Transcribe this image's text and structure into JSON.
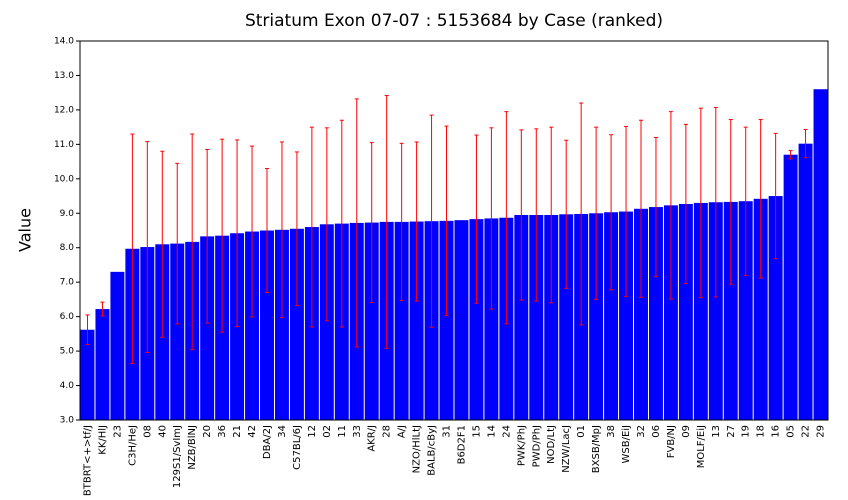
{
  "chart_data": {
    "type": "bar",
    "title": "Striatum Exon 07-07 : 5153684 by Case (ranked)",
    "y_label": "Value",
    "color": "#0000ff",
    "error_color": "#ff0000",
    "categories": [
      "BTBRT<+>tf/J",
      "KK/HlJ",
      "23",
      "C3H/HeJ",
      "08",
      "40",
      "129S1/SvImJ",
      "NZB/BlNJ",
      "20",
      "36",
      "21",
      "42",
      "DBA/2J",
      "34",
      "C57BL/6J",
      "12",
      "02",
      "11",
      "33",
      "AKR/J",
      "28",
      "A/J",
      "NZO/HlLtJ",
      "BALB/cByJ",
      "31",
      "B6D2F1",
      "15",
      "14",
      "24",
      "PWK/PhJ",
      "PWD/PhJ",
      "NOD/LtJ",
      "NZW/LacJ",
      "01",
      "BXSB/MpJ",
      "38",
      "WSB/EiJ",
      "32",
      "06",
      "FVB/NJ",
      "09",
      "MOLF/EiJ",
      "13",
      "27",
      "19",
      "18",
      "16",
      "05",
      "22",
      "29"
    ],
    "values": [
      5.62,
      6.22,
      7.3,
      7.97,
      8.02,
      8.1,
      8.12,
      8.17,
      8.33,
      8.35,
      8.42,
      8.47,
      8.5,
      8.52,
      8.55,
      8.6,
      8.68,
      8.7,
      8.72,
      8.73,
      8.75,
      8.75,
      8.76,
      8.77,
      8.78,
      8.8,
      8.83,
      8.85,
      8.87,
      8.95,
      8.95,
      8.95,
      8.97,
      8.98,
      9.0,
      9.03,
      9.05,
      9.13,
      9.18,
      9.23,
      9.27,
      9.3,
      9.32,
      9.33,
      9.35,
      9.42,
      9.5,
      10.7,
      11.02,
      12.6
    ],
    "errors": [
      0.43,
      0.2,
      null,
      3.33,
      3.06,
      2.7,
      2.33,
      3.13,
      2.52,
      2.8,
      2.71,
      2.48,
      1.8,
      2.55,
      2.23,
      2.9,
      2.8,
      3.0,
      3.6,
      2.32,
      3.67,
      2.28,
      2.31,
      3.08,
      2.75,
      null,
      2.44,
      2.63,
      3.08,
      2.47,
      2.5,
      2.55,
      2.15,
      3.22,
      2.5,
      2.25,
      2.47,
      2.57,
      2.02,
      2.72,
      2.31,
      2.75,
      2.75,
      2.39,
      2.15,
      2.3,
      1.82,
      0.12,
      0.41,
      null
    ],
    "ylim": [
      3,
      14
    ],
    "yticks": [
      {
        "value": 3,
        "label": "3.0"
      },
      {
        "value": 4,
        "label": "4.0"
      },
      {
        "value": 5,
        "label": "5.0"
      },
      {
        "value": 6,
        "label": "6.0"
      },
      {
        "value": 7,
        "label": "7.0"
      },
      {
        "value": 8,
        "label": "8.0"
      },
      {
        "value": 9,
        "label": "9.0"
      },
      {
        "value": 10,
        "label": "10.0"
      },
      {
        "value": 11,
        "label": "11.0"
      },
      {
        "value": 12,
        "label": "12.0"
      },
      {
        "value": 13,
        "label": "13.0"
      },
      {
        "value": 14,
        "label": "14.0"
      }
    ]
  }
}
